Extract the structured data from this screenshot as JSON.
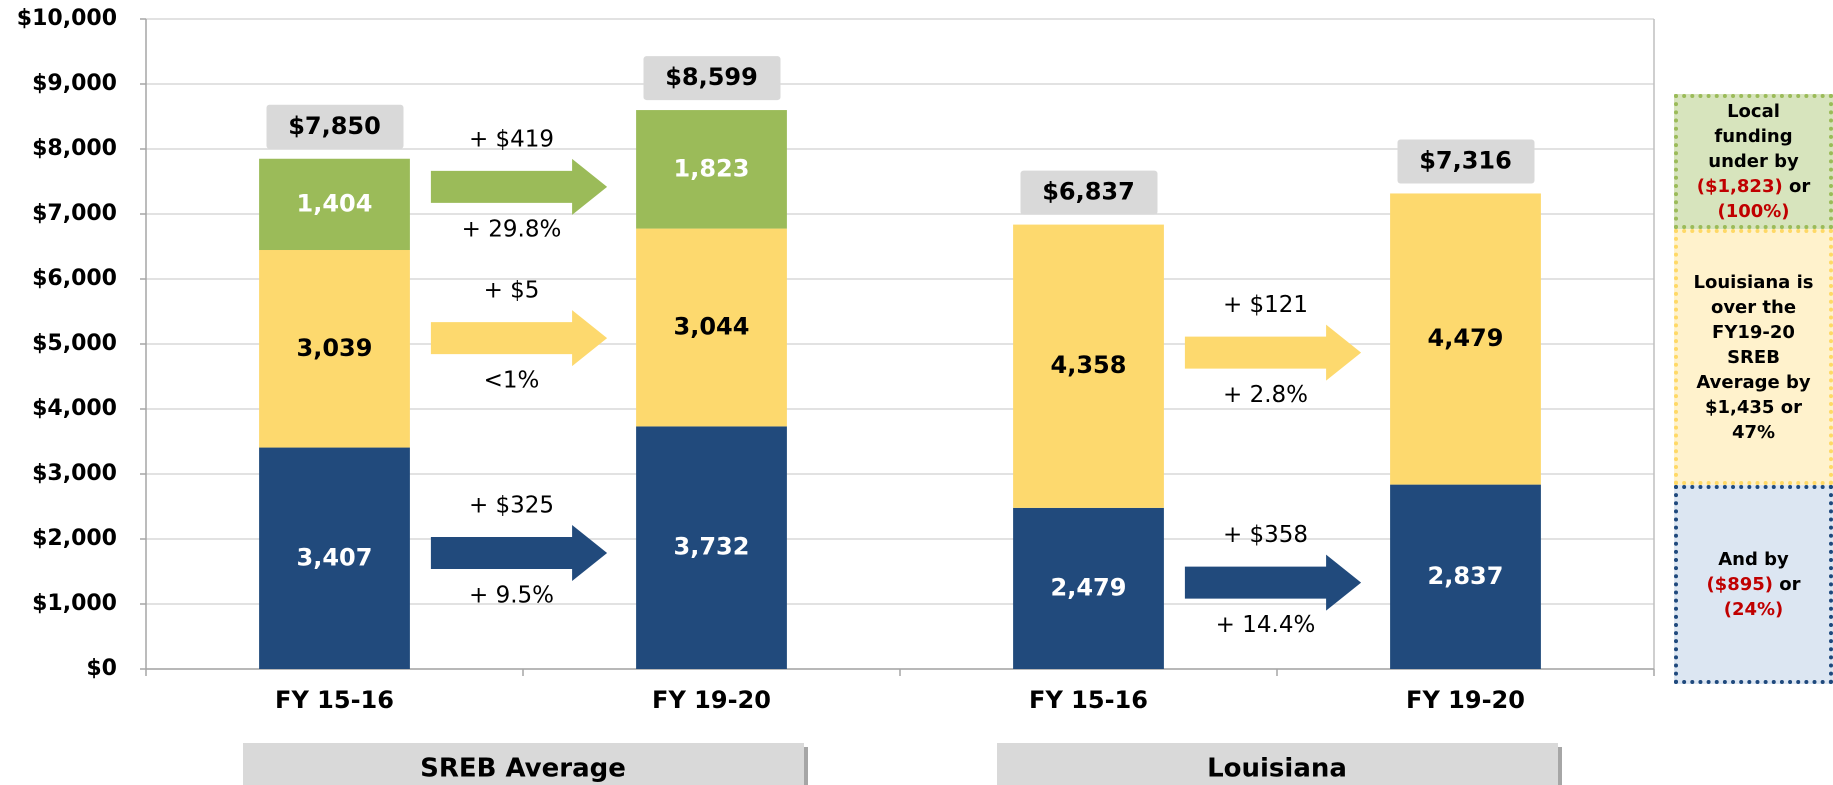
{
  "chart_data": {
    "type": "stacked_bar",
    "categories": [
      "FY 15-16",
      "FY 19-20",
      "FY 15-16",
      "FY 19-20"
    ],
    "groups": [
      "SREB Average",
      "Louisiana"
    ],
    "series": [
      {
        "color": "#214a7c",
        "label_color": "#ffffff",
        "values": [
          3407,
          3732,
          2479,
          2837
        ],
        "value_labels": [
          "3,407",
          "3,732",
          "2,479",
          "2,837"
        ],
        "changes": [
          {
            "above": "+ $325",
            "below": "+ 9.5%"
          },
          {
            "above": "+ $358",
            "below": "+ 14.4%"
          }
        ]
      },
      {
        "color": "#fdd96e",
        "label_color": "#000000",
        "values": [
          3039,
          3044,
          4358,
          4479
        ],
        "value_labels": [
          "3,039",
          "3,044",
          "4,358",
          "4,479"
        ],
        "changes": [
          {
            "above": "+ $5",
            "below": "<1%"
          },
          {
            "above": "+ $121",
            "below": "+ 2.8%"
          }
        ]
      },
      {
        "color": "#9bbb59",
        "label_color": "#ffffff",
        "values": [
          1404,
          1823,
          null,
          null
        ],
        "value_labels": [
          "1,404",
          "1,823",
          null,
          null
        ],
        "changes": [
          {
            "above": "+ $419",
            "below": "+ 29.8%"
          },
          null
        ]
      }
    ],
    "totals": [
      7850,
      8599,
      6837,
      7316
    ],
    "total_labels": [
      "$7,850",
      "$8,599",
      "$6,837",
      "$7,316"
    ],
    "ylim": [
      0,
      10000
    ],
    "yticks": [
      {
        "value": 0,
        "label": "$0"
      },
      {
        "value": 1000,
        "label": "$1,000"
      },
      {
        "value": 2000,
        "label": "$2,000"
      },
      {
        "value": 3000,
        "label": "$3,000"
      },
      {
        "value": 4000,
        "label": "$4,000"
      },
      {
        "value": 5000,
        "label": "$5,000"
      },
      {
        "value": 6000,
        "label": "$6,000"
      },
      {
        "value": 7000,
        "label": "$7,000"
      },
      {
        "value": 8000,
        "label": "$8,000"
      },
      {
        "value": 9000,
        "label": "$9,000"
      },
      {
        "value": 10000,
        "label": "$10,000"
      }
    ],
    "grid": true
  },
  "notes": [
    {
      "bg": "#d7e4bd",
      "border": "#9bbb59",
      "parts": [
        {
          "text": "Local funding under by "
        },
        {
          "text": "($1,823)",
          "color": "#c00000"
        },
        {
          "text": " or "
        },
        {
          "text": "(100%)",
          "color": "#c00000"
        }
      ]
    },
    {
      "bg": "#fff2cc",
      "border": "#ffd966",
      "parts": [
        {
          "text": "Louisiana is over the FY19-20 SREB Average by $1,435 or 47%"
        }
      ]
    },
    {
      "bg": "#dce6f2",
      "border": "#1f497d",
      "parts": [
        {
          "text": "And by "
        },
        {
          "text": "($895)",
          "color": "#c00000"
        },
        {
          "text": " or "
        },
        {
          "text": "(24%)",
          "color": "#c00000"
        }
      ]
    }
  ]
}
